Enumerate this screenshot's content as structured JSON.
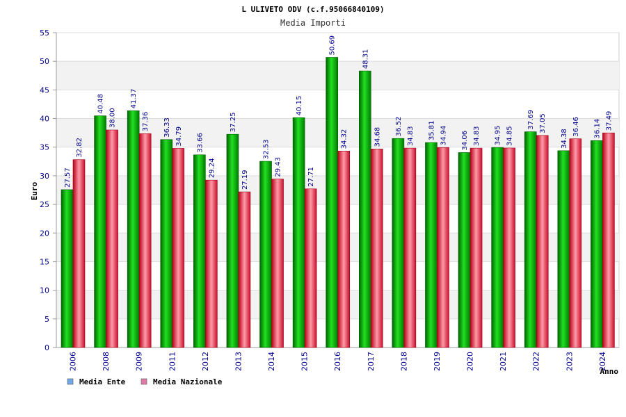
{
  "chart_data": {
    "type": "bar",
    "title": "L ULIVETO ODV (c.f.95066840109)",
    "subtitle": "Media Importi",
    "xlabel": "Anno",
    "ylabel": "Euro",
    "ylim": [
      0,
      55
    ],
    "ytick_step": 5,
    "grid": true,
    "legend_position": "bottom-left",
    "categories": [
      "2006",
      "2008",
      "2009",
      "2011",
      "2012",
      "2013",
      "2014",
      "2015",
      "2016",
      "2017",
      "2018",
      "2019",
      "2020",
      "2021",
      "2022",
      "2023",
      "2024"
    ],
    "series": [
      {
        "name": "Media Ente",
        "legend_color": "#6fa8e8",
        "color": "#00b400",
        "values": [
          27.57,
          40.48,
          41.37,
          36.33,
          33.66,
          37.25,
          32.53,
          40.15,
          50.69,
          48.31,
          36.52,
          35.81,
          34.06,
          34.95,
          37.69,
          34.38,
          36.14
        ],
        "labels": [
          "27.57",
          "40.48",
          "41.37",
          "36.33",
          "33.66",
          "37.25",
          "32.53",
          "40.15",
          "50.69",
          "48.31",
          "36.52",
          "35.81",
          "34.06",
          "34.95",
          "37.69",
          "34.38",
          "36.14"
        ]
      },
      {
        "name": "Media Nazionale",
        "legend_color": "#e07aa8",
        "color": "#e8203a",
        "values": [
          32.82,
          38.0,
          37.36,
          34.79,
          29.24,
          27.19,
          29.43,
          27.71,
          34.32,
          34.68,
          34.83,
          34.94,
          34.83,
          34.85,
          37.05,
          36.46,
          37.49
        ],
        "labels": [
          "32.82",
          "38.00",
          "37.36",
          "34.79",
          "29.24",
          "27.19",
          "29.43",
          "27.71",
          "34.32",
          "34.68",
          "34.83",
          "34.94",
          "34.83",
          "34.85",
          "37.05",
          "36.46",
          "37.49"
        ]
      }
    ]
  }
}
